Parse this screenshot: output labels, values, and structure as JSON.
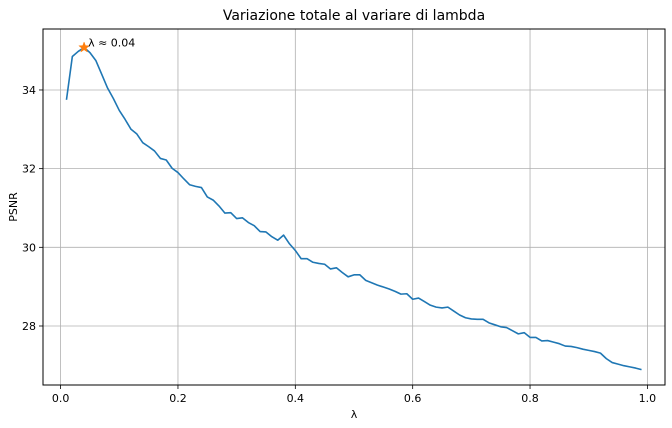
{
  "chart_data": {
    "type": "line",
    "title": "Variazione totale al variare di lambda",
    "xlabel": "λ",
    "ylabel": "PSNR",
    "xlim": [
      -0.03,
      1.03
    ],
    "ylim": [
      26.5,
      35.55
    ],
    "xticks": [
      0.0,
      0.2,
      0.4,
      0.6,
      0.8,
      1.0
    ],
    "xtick_labels": [
      "0.0",
      "0.2",
      "0.4",
      "0.6",
      "0.8",
      "1.0"
    ],
    "yticks": [
      28,
      30,
      32,
      34
    ],
    "ytick_labels": [
      "28",
      "30",
      "32",
      "34"
    ],
    "grid": true,
    "series": [
      {
        "color": "#1f77b4",
        "x": [
          0.01,
          0.02,
          0.03,
          0.04,
          0.05,
          0.06,
          0.07,
          0.08,
          0.09,
          0.1,
          0.11,
          0.12,
          0.13,
          0.14,
          0.15,
          0.16,
          0.17,
          0.18,
          0.19,
          0.2,
          0.21,
          0.22,
          0.23,
          0.24,
          0.25,
          0.26,
          0.27,
          0.28,
          0.29,
          0.3,
          0.31,
          0.32,
          0.33,
          0.34,
          0.35,
          0.36,
          0.37,
          0.38,
          0.39,
          0.4,
          0.41,
          0.42,
          0.43,
          0.44,
          0.45,
          0.46,
          0.47,
          0.48,
          0.49,
          0.5,
          0.51,
          0.52,
          0.53,
          0.54,
          0.55,
          0.56,
          0.57,
          0.58,
          0.59,
          0.6,
          0.61,
          0.62,
          0.63,
          0.64,
          0.65,
          0.66,
          0.67,
          0.68,
          0.69,
          0.7,
          0.71,
          0.72,
          0.73,
          0.74,
          0.75,
          0.76,
          0.77,
          0.78,
          0.79,
          0.8,
          0.81,
          0.82,
          0.83,
          0.84,
          0.85,
          0.86,
          0.87,
          0.88,
          0.89,
          0.9,
          0.91,
          0.92,
          0.93,
          0.94,
          0.95,
          0.96,
          0.97,
          0.98,
          0.99
        ],
        "y": [
          33.75,
          34.85,
          34.98,
          35.08,
          34.95,
          34.75,
          34.4,
          34.05,
          33.78,
          33.48,
          33.25,
          33.0,
          32.88,
          32.66,
          32.56,
          32.45,
          32.26,
          32.22,
          32.01,
          31.9,
          31.74,
          31.59,
          31.55,
          31.52,
          31.28,
          31.2,
          31.05,
          30.87,
          30.88,
          30.73,
          30.75,
          30.63,
          30.55,
          30.4,
          30.39,
          30.27,
          30.18,
          30.31,
          30.09,
          29.92,
          29.71,
          29.71,
          29.62,
          29.59,
          29.57,
          29.45,
          29.48,
          29.36,
          29.25,
          29.3,
          29.3,
          29.16,
          29.1,
          29.04,
          28.99,
          28.94,
          28.88,
          28.81,
          28.82,
          28.68,
          28.71,
          28.62,
          28.53,
          28.48,
          28.46,
          28.48,
          28.38,
          28.28,
          28.21,
          28.18,
          28.17,
          28.17,
          28.08,
          28.03,
          27.98,
          27.96,
          27.88,
          27.8,
          27.83,
          27.71,
          27.71,
          27.62,
          27.63,
          27.59,
          27.55,
          27.49,
          27.48,
          27.45,
          27.41,
          27.38,
          27.35,
          27.31,
          27.17,
          27.07,
          27.03,
          26.99,
          26.96,
          26.93,
          26.89
        ]
      }
    ],
    "annotation": {
      "text": "λ ≈ 0.04",
      "x": 0.04,
      "y": 35.08,
      "marker_color": "#ff7f0e"
    }
  }
}
